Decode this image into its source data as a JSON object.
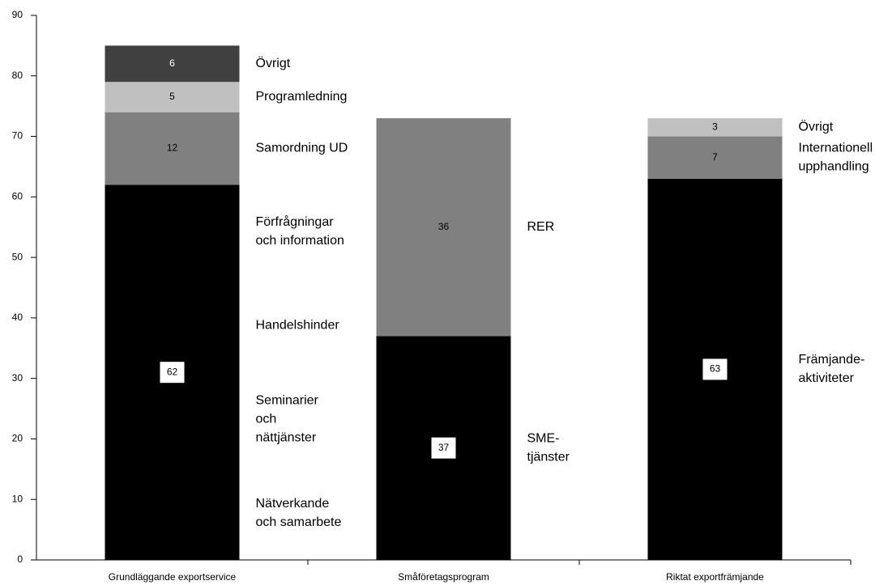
{
  "chart_data": {
    "type": "stacked_bar",
    "categories": [
      "Grundläggande exportservice",
      "Småföretagsprogram",
      "Riktat exportfrämjande"
    ],
    "ylim": [
      0,
      90
    ],
    "yticks": [
      0,
      10,
      20,
      30,
      40,
      50,
      60,
      70,
      80,
      90
    ],
    "stacks": [
      {
        "segments": [
          {
            "value": 62,
            "color": "#000000",
            "label_color": "#000000",
            "label_box": true,
            "annotations": [
              [
                "Förfrågningar",
                "och information"
              ],
              [
                "Handelshinder"
              ],
              [
                "Seminarier",
                "och",
                "nättjänster"
              ],
              [
                "Nätverkande",
                "och samarbete"
              ]
            ]
          },
          {
            "value": 12,
            "color": "#808080",
            "label_color": "#000000",
            "label_box": false,
            "annotations": [
              [
                "Samordning UD"
              ]
            ]
          },
          {
            "value": 5,
            "color": "#c0c0c0",
            "label_color": "#000000",
            "label_box": false,
            "annotations": [
              [
                "Programledning"
              ]
            ]
          },
          {
            "value": 6,
            "color": "#404040",
            "label_color": "#ffffff",
            "label_box": false,
            "annotations": [
              [
                "Övrigt"
              ]
            ]
          }
        ]
      },
      {
        "segments": [
          {
            "value": 37,
            "color": "#000000",
            "label_color": "#000000",
            "label_box": true,
            "annotations": [
              [
                "SME-",
                "tjänster"
              ]
            ]
          },
          {
            "value": 36,
            "color": "#808080",
            "label_color": "#000000",
            "label_box": false,
            "annotations": [
              [
                "RER"
              ]
            ]
          }
        ]
      },
      {
        "segments": [
          {
            "value": 63,
            "color": "#000000",
            "label_color": "#000000",
            "label_box": true,
            "annotations": [
              [
                "Främjande-",
                "aktiviteter"
              ]
            ]
          },
          {
            "value": 7,
            "color": "#808080",
            "label_color": "#000000",
            "label_box": false,
            "annotations": [
              [
                "Internationell",
                "upphandling"
              ]
            ]
          },
          {
            "value": 3,
            "color": "#c0c0c0",
            "label_color": "#000000",
            "label_box": false,
            "annotations": [
              [
                "Övrigt"
              ]
            ]
          }
        ]
      }
    ]
  }
}
